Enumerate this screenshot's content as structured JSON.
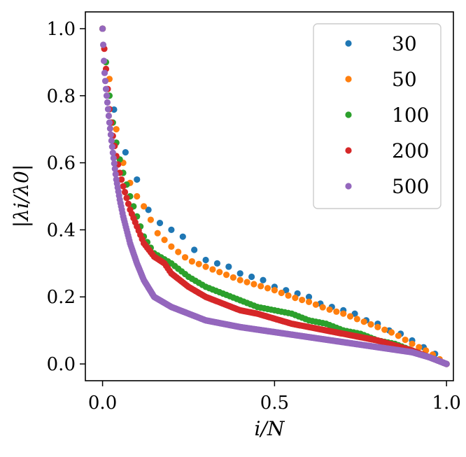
{
  "chart_data": {
    "type": "scatter",
    "title": "",
    "xlabel": "i/N",
    "ylabel": "|λi/λ0|",
    "xlim": [
      -0.05,
      1.02
    ],
    "ylim": [
      -0.05,
      1.05
    ],
    "xticks": [
      0.0,
      0.5,
      1.0
    ],
    "xtick_labels": [
      "0.0",
      "0.5",
      "1.0"
    ],
    "yticks": [
      0.0,
      0.2,
      0.4,
      0.6,
      0.8,
      1.0
    ],
    "ytick_labels": [
      "0.0",
      "0.2",
      "0.4",
      "0.6",
      "0.8",
      "1.0"
    ],
    "grid": false,
    "legend_position": "top-right",
    "series": [
      {
        "name": "30",
        "color": "#1f77b4",
        "n": 30,
        "curve": {
          "x": [
            0,
            0.033,
            0.067,
            0.1,
            0.133,
            0.167,
            0.2,
            0.233,
            0.267,
            0.3,
            0.333,
            0.367,
            0.4,
            0.433,
            0.467,
            0.5,
            0.533,
            0.567,
            0.6,
            0.633,
            0.667,
            0.7,
            0.733,
            0.767,
            0.8,
            0.833,
            0.867,
            0.9,
            0.933,
            0.967,
            1.0
          ],
          "y": [
            1.0,
            0.76,
            0.63,
            0.55,
            0.46,
            0.42,
            0.4,
            0.38,
            0.34,
            0.31,
            0.3,
            0.29,
            0.27,
            0.26,
            0.25,
            0.23,
            0.22,
            0.21,
            0.2,
            0.18,
            0.17,
            0.16,
            0.15,
            0.13,
            0.12,
            0.1,
            0.09,
            0.07,
            0.05,
            0.03,
            0.0
          ]
        }
      },
      {
        "name": "50",
        "color": "#ff7f0e",
        "n": 50,
        "curve": {
          "x": [
            0,
            0.02,
            0.04,
            0.06,
            0.08,
            0.1,
            0.12,
            0.14,
            0.16,
            0.2,
            0.25,
            0.3,
            0.35,
            0.4,
            0.45,
            0.5,
            0.55,
            0.6,
            0.65,
            0.7,
            0.75,
            0.8,
            0.85,
            0.9,
            0.95,
            1.0
          ],
          "y": [
            1.0,
            0.85,
            0.7,
            0.6,
            0.54,
            0.5,
            0.47,
            0.43,
            0.39,
            0.35,
            0.31,
            0.29,
            0.27,
            0.25,
            0.235,
            0.22,
            0.2,
            0.185,
            0.165,
            0.15,
            0.13,
            0.11,
            0.09,
            0.06,
            0.035,
            0.0
          ]
        }
      },
      {
        "name": "100",
        "color": "#2ca02c",
        "n": 100,
        "curve": {
          "x": [
            0,
            0.01,
            0.02,
            0.03,
            0.04,
            0.05,
            0.06,
            0.08,
            0.1,
            0.12,
            0.15,
            0.2,
            0.25,
            0.3,
            0.35,
            0.4,
            0.45,
            0.5,
            0.55,
            0.6,
            0.65,
            0.7,
            0.75,
            0.8,
            0.85,
            0.9,
            0.95,
            1.0
          ],
          "y": [
            1.0,
            0.9,
            0.8,
            0.72,
            0.66,
            0.61,
            0.57,
            0.5,
            0.44,
            0.38,
            0.33,
            0.3,
            0.26,
            0.23,
            0.21,
            0.19,
            0.17,
            0.16,
            0.15,
            0.13,
            0.12,
            0.1,
            0.09,
            0.07,
            0.06,
            0.04,
            0.02,
            0.0
          ]
        }
      },
      {
        "name": "200",
        "color": "#d62728",
        "n": 200,
        "curve": {
          "x": [
            0,
            0.01,
            0.02,
            0.03,
            0.04,
            0.05,
            0.06,
            0.08,
            0.1,
            0.12,
            0.15,
            0.18,
            0.2,
            0.25,
            0.3,
            0.35,
            0.4,
            0.45,
            0.5,
            0.55,
            0.6,
            0.65,
            0.7,
            0.75,
            0.8,
            0.85,
            0.9,
            0.95,
            1.0
          ],
          "y": [
            1.0,
            0.88,
            0.76,
            0.68,
            0.62,
            0.57,
            0.53,
            0.46,
            0.41,
            0.36,
            0.32,
            0.3,
            0.27,
            0.23,
            0.2,
            0.18,
            0.16,
            0.15,
            0.135,
            0.12,
            0.11,
            0.1,
            0.09,
            0.08,
            0.07,
            0.055,
            0.04,
            0.02,
            0.0
          ]
        }
      },
      {
        "name": "500",
        "color": "#9467bd",
        "n": 500,
        "curve": {
          "x": [
            0,
            0.005,
            0.01,
            0.02,
            0.03,
            0.04,
            0.05,
            0.06,
            0.07,
            0.08,
            0.1,
            0.12,
            0.15,
            0.2,
            0.25,
            0.3,
            0.35,
            0.4,
            0.5,
            0.6,
            0.7,
            0.8,
            0.9,
            0.95,
            1.0
          ],
          "y": [
            1.0,
            0.88,
            0.82,
            0.72,
            0.63,
            0.55,
            0.49,
            0.44,
            0.4,
            0.36,
            0.3,
            0.25,
            0.2,
            0.17,
            0.15,
            0.13,
            0.12,
            0.11,
            0.095,
            0.08,
            0.065,
            0.05,
            0.035,
            0.02,
            0.0
          ]
        }
      }
    ]
  }
}
